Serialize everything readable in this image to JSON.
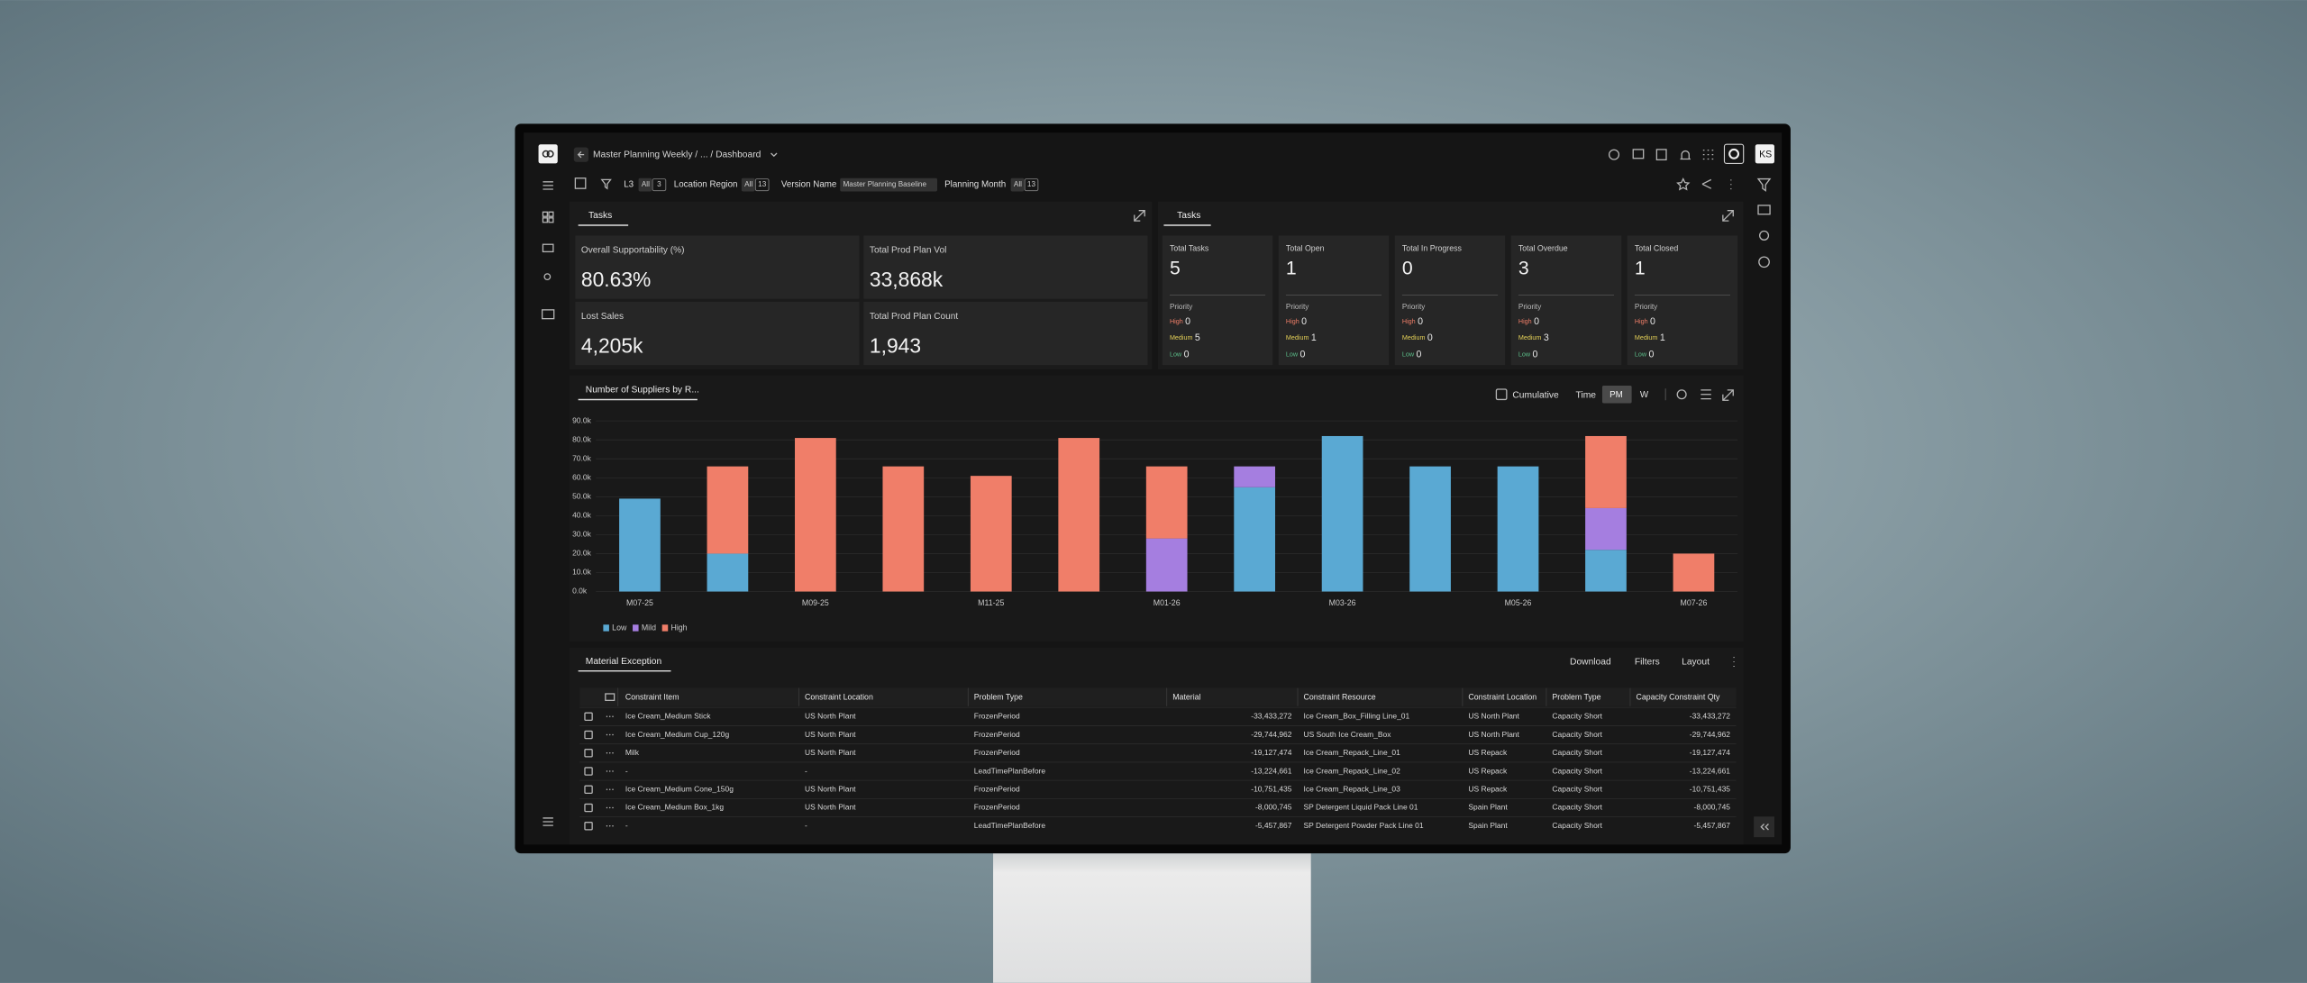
{
  "header": {
    "breadcrumb": "Master Planning Weekly / ... / Dashboard",
    "user_initials": "KS"
  },
  "filters": [
    {
      "label": "L3",
      "value": "All",
      "count": 3
    },
    {
      "label": "Location Region",
      "value": "All",
      "count": 13
    },
    {
      "label": "Version Name",
      "value": "Master Planning Baseline"
    },
    {
      "label": "Planning Month",
      "value": "All",
      "count": 13
    }
  ],
  "kpi_panel": {
    "tab": "Tasks",
    "cards": [
      {
        "label": "Overall Supportability (%)",
        "value": "80.63%"
      },
      {
        "label": "Total Prod Plan Vol",
        "value": "33,868k"
      },
      {
        "label": "Lost Sales",
        "value": "4,205k"
      },
      {
        "label": "Total Prod Plan Count",
        "value": "1,943"
      }
    ]
  },
  "tasks_panel": {
    "tab": "Tasks",
    "priority_label": "Priority",
    "levels": [
      "High",
      "Medium",
      "Low"
    ],
    "cards": [
      {
        "label": "Total Tasks",
        "value": 5,
        "counts": [
          0,
          5,
          0
        ]
      },
      {
        "label": "Total Open",
        "value": 1,
        "counts": [
          0,
          1,
          0
        ]
      },
      {
        "label": "Total In Progress",
        "value": 0,
        "counts": [
          0,
          0,
          0
        ]
      },
      {
        "label": "Total Overdue",
        "value": 3,
        "counts": [
          0,
          3,
          0
        ]
      },
      {
        "label": "Total Closed",
        "value": 1,
        "counts": [
          0,
          1,
          0
        ]
      }
    ]
  },
  "chart_controls": {
    "cumulative": "Cumulative",
    "time": "Time",
    "periods": [
      "PM",
      "W"
    ]
  },
  "chart_data": {
    "type": "bar",
    "stacked": true,
    "title": "Number of Suppliers by R...",
    "categories": [
      "M07-25",
      null,
      "M09-25",
      null,
      "M11-25",
      null,
      "M01-26",
      null,
      "M03-26",
      null,
      "M05-26",
      null,
      "M07-26"
    ],
    "series": [
      {
        "name": "Low",
        "color": "#5aa9d3",
        "values": [
          49,
          20,
          0,
          0,
          0,
          0,
          0,
          55,
          82,
          66,
          66,
          22,
          0
        ]
      },
      {
        "name": "Mild",
        "color": "#a57ee0",
        "values": [
          0,
          0,
          0,
          0,
          0,
          0,
          28,
          11,
          0,
          0,
          0,
          22,
          0
        ]
      },
      {
        "name": "High",
        "color": "#f07e69",
        "values": [
          0,
          46,
          81,
          66,
          61,
          81,
          38,
          0,
          0,
          0,
          0,
          38,
          20
        ]
      }
    ],
    "ylim": [
      0,
      90
    ],
    "yticks": [
      {
        "value": 0,
        "label": "0.0k"
      },
      {
        "value": 10,
        "label": "10.0k"
      },
      {
        "value": 20,
        "label": "20.0k"
      },
      {
        "value": 30,
        "label": "30.0k"
      },
      {
        "value": 40,
        "label": "40.0k"
      },
      {
        "value": 50,
        "label": "50.0k"
      },
      {
        "value": 60,
        "label": "60.0k"
      },
      {
        "value": 70,
        "label": "70.0k"
      },
      {
        "value": 80,
        "label": "80.0k"
      },
      {
        "value": 90,
        "label": "90.0k"
      }
    ],
    "grid": true,
    "legend": "bottom-left"
  },
  "table_panel": {
    "tab": "Material Exception",
    "actions": [
      "Download",
      "Filters",
      "Layout"
    ]
  },
  "table": {
    "columns": [
      "Constraint Item",
      "Constraint Location",
      "Problem Type",
      "Material",
      "Constraint Resource",
      "Constraint Location",
      "Problem Type",
      "Capacity Constraint Qty"
    ],
    "rows": [
      [
        "Ice Cream_Medium Stick",
        "US North Plant",
        "FrozenPeriod",
        "-33,433,272",
        "Ice Cream_Box_Filling Line_01",
        "US North Plant",
        "Capacity Short",
        "-33,433,272"
      ],
      [
        "Ice Cream_Medium Cup_120g",
        "US North Plant",
        "FrozenPeriod",
        "-29,744,962",
        "US South Ice Cream_Box",
        "US North Plant",
        "Capacity Short",
        "-29,744,962"
      ],
      [
        "Milk",
        "US North Plant",
        "FrozenPeriod",
        "-19,127,474",
        "Ice Cream_Repack_Line_01",
        "US Repack",
        "Capacity Short",
        "-19,127,474"
      ],
      [
        "-",
        "-",
        "LeadTimePlanBefore",
        "-13,224,661",
        "Ice Cream_Repack_Line_02",
        "US Repack",
        "Capacity Short",
        "-13,224,661"
      ],
      [
        "Ice Cream_Medium Cone_150g",
        "US North Plant",
        "FrozenPeriod",
        "-10,751,435",
        "Ice Cream_Repack_Line_03",
        "US Repack",
        "Capacity Short",
        "-10,751,435"
      ],
      [
        "Ice Cream_Medium Box_1kg",
        "US North Plant",
        "FrozenPeriod",
        "-8,000,745",
        "SP Detergent Liquid Pack Line 01",
        "Spain Plant",
        "Capacity Short",
        "-8,000,745"
      ],
      [
        "-",
        "-",
        "LeadTimePlanBefore",
        "-5,457,867",
        "SP Detergent Powder Pack Line 01",
        "Spain Plant",
        "Capacity Short",
        "-5,457,867"
      ]
    ]
  }
}
